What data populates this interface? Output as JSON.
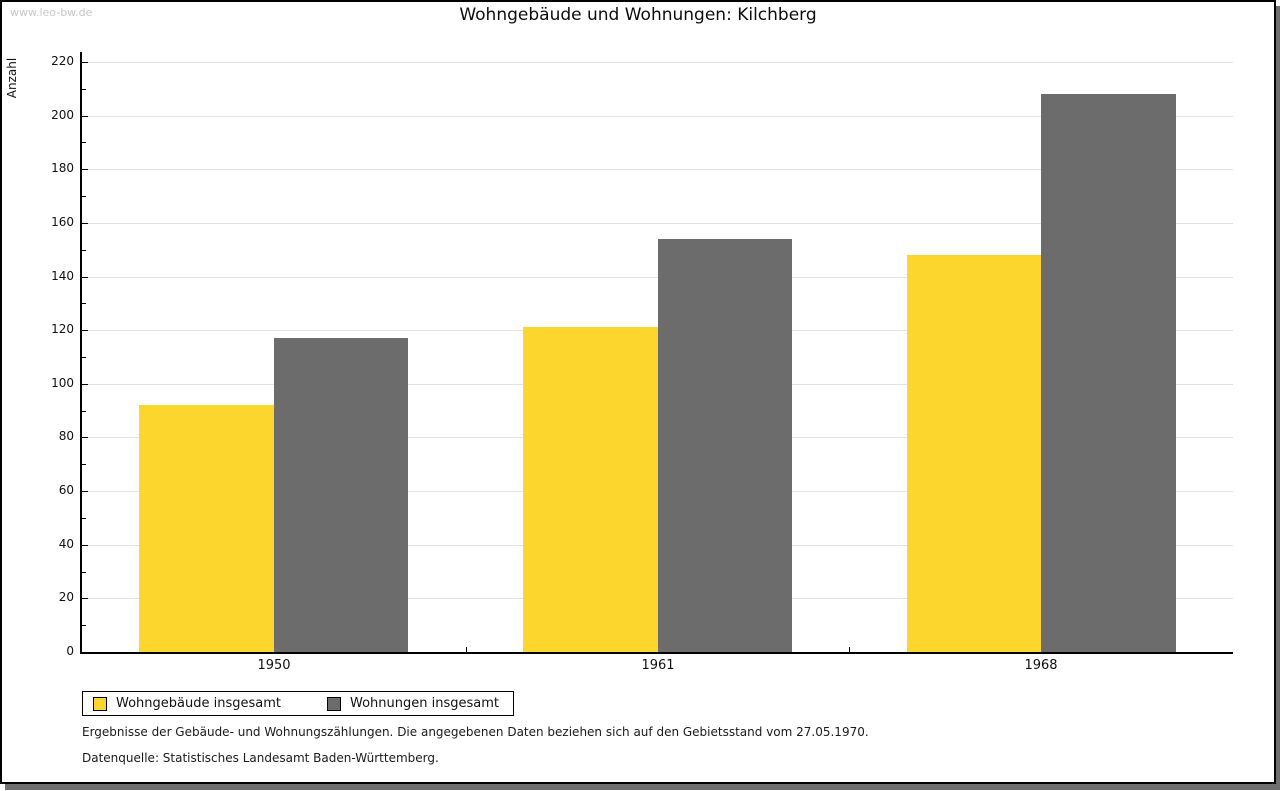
{
  "page": {
    "watermark": "www.leo-bw.de",
    "title": "Wohngebäude und Wohnungen: Kilchberg"
  },
  "chart_data": {
    "type": "bar",
    "title": "Wohngebäude und Wohnungen: Kilchberg",
    "categories": [
      "1950",
      "1961",
      "1968"
    ],
    "series": [
      {
        "name": "Wohngebäude insgesamt",
        "color": "#FCD52D",
        "values": [
          92,
          121,
          148
        ]
      },
      {
        "name": "Wohnungen insgesamt",
        "color": "#6C6C6C",
        "values": [
          117,
          154,
          208
        ]
      }
    ],
    "xlabel": "",
    "ylabel": "Anzahl",
    "ylim": [
      0,
      220
    ],
    "ytick_step": 20,
    "yminor_step": 10,
    "grid": true,
    "gridline_color": "#E2E2E2",
    "legend_position": "bottom-left"
  },
  "footnotes": {
    "line1": "Ergebnisse der Gebäude- und Wohnungszählungen. Die angegebenen Daten beziehen sich auf den Gebietsstand vom 27.05.1970.",
    "line2": "Datenquelle: Statistisches Landesamt Baden-Württemberg."
  },
  "colors": {
    "frame_border": "#000000",
    "shadow": "#6E6E6E",
    "watermark": "#C8C8C8",
    "axis": "#000000"
  }
}
